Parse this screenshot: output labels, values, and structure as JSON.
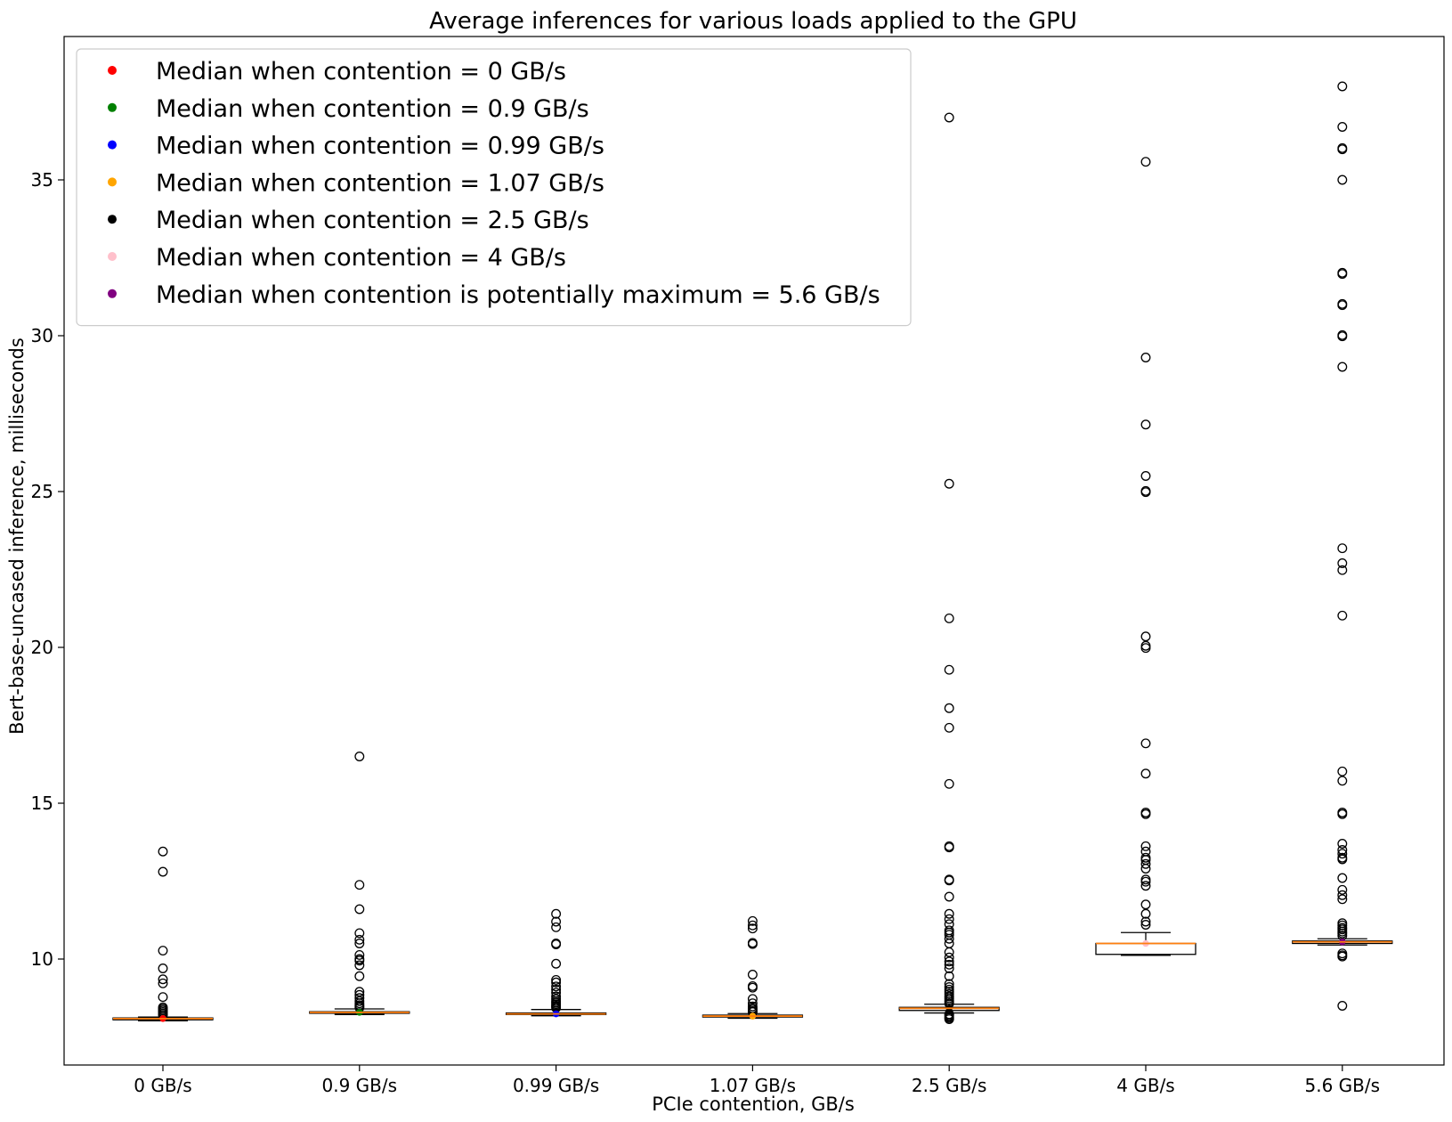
{
  "chart_data": {
    "type": "box",
    "title": "Average inferences for various loads applied to the GPU",
    "xlabel": "PCIe contention, GB/s",
    "ylabel": "Bert-base-uncased inference, milliseconds",
    "ylim": [
      6.6,
      39.6
    ],
    "yticks": [
      10,
      15,
      20,
      25,
      30,
      35
    ],
    "grid": false,
    "legend_position": "upper-left",
    "categories": [
      "0 GB/s",
      "0.9 GB/s",
      "0.99 GB/s",
      "1.07 GB/s",
      "2.5 GB/s",
      "4 GB/s",
      "5.6 GB/s"
    ],
    "boxes": [
      {
        "q1": 8.05,
        "median": 8.09,
        "q3": 8.11,
        "whisker_low": 8.02,
        "whisker_high": 8.14,
        "outliers": [
          13.45,
          12.8,
          10.27,
          9.7,
          9.35,
          9.22,
          8.78,
          8.45,
          8.4,
          8.35,
          8.3,
          8.25,
          8.2
        ]
      },
      {
        "q1": 8.26,
        "median": 8.29,
        "q3": 8.31,
        "whisker_low": 8.22,
        "whisker_high": 8.4,
        "outliers": [
          16.5,
          12.38,
          11.6,
          10.83,
          10.62,
          10.5,
          10.13,
          10.0,
          9.95,
          9.8,
          9.45,
          8.95,
          8.85,
          8.75,
          8.65,
          8.58,
          8.52,
          8.48,
          8.44
        ]
      },
      {
        "q1": 8.22,
        "median": 8.24,
        "q3": 8.27,
        "whisker_low": 8.18,
        "whisker_high": 8.38,
        "outliers": [
          11.45,
          11.2,
          11.02,
          10.5,
          10.47,
          9.85,
          9.33,
          9.25,
          9.12,
          9.02,
          8.92,
          8.8,
          8.72,
          8.65,
          8.6,
          8.55,
          8.5,
          8.47,
          8.43
        ]
      },
      {
        "q1": 8.14,
        "median": 8.17,
        "q3": 8.2,
        "whisker_low": 8.1,
        "whisker_high": 8.25,
        "outliers": [
          11.22,
          11.08,
          10.98,
          10.52,
          10.48,
          9.5,
          9.13,
          9.08,
          8.72,
          8.58,
          8.48,
          8.42,
          8.38,
          8.33,
          8.3
        ]
      },
      {
        "q1": 8.35,
        "median": 8.42,
        "q3": 8.45,
        "whisker_low": 8.27,
        "whisker_high": 8.55,
        "outliers": [
          37.0,
          25.25,
          20.93,
          19.28,
          18.05,
          17.42,
          15.62,
          13.62,
          13.58,
          12.55,
          12.52,
          12.0,
          11.45,
          11.28,
          11.12,
          10.92,
          10.85,
          10.78,
          10.65,
          10.5,
          10.22,
          10.05,
          9.92,
          9.82,
          9.7,
          9.45,
          9.2,
          9.1,
          9.02,
          8.95,
          8.88,
          8.8,
          8.74,
          8.68,
          8.62,
          8.57,
          8.23,
          8.19,
          8.15,
          8.11,
          8.07
        ]
      },
      {
        "q1": 10.15,
        "median": 10.5,
        "q3": 10.5,
        "whisker_low": 10.12,
        "whisker_high": 10.85,
        "outliers": [
          35.58,
          29.3,
          27.15,
          25.5,
          25.02,
          24.98,
          20.35,
          20.05,
          19.98,
          16.92,
          15.95,
          14.7,
          14.65,
          13.62,
          13.45,
          13.25,
          13.18,
          13.05,
          12.9,
          12.55,
          12.48,
          12.35,
          11.75,
          11.45,
          11.2,
          11.1
        ]
      },
      {
        "q1": 10.5,
        "median": 10.55,
        "q3": 10.58,
        "whisker_low": 10.45,
        "whisker_high": 10.65,
        "outliers": [
          38.0,
          36.7,
          36.02,
          35.98,
          35.0,
          32.02,
          31.98,
          31.02,
          30.98,
          30.02,
          29.98,
          29.0,
          23.18,
          22.7,
          22.48,
          21.02,
          16.02,
          15.72,
          14.7,
          14.65,
          13.7,
          13.5,
          13.38,
          13.25,
          13.2,
          12.6,
          12.22,
          12.05,
          11.92,
          11.15,
          11.08,
          11.0,
          10.95,
          10.88,
          10.82,
          10.75,
          10.18,
          10.12,
          10.08,
          8.5
        ]
      }
    ],
    "median_markers": [
      {
        "category": "0 GB/s",
        "value": 8.09,
        "color": "#ff0000"
      },
      {
        "category": "0.9 GB/s",
        "value": 8.29,
        "color": "#008000"
      },
      {
        "category": "0.99 GB/s",
        "value": 8.24,
        "color": "#0000ff"
      },
      {
        "category": "1.07 GB/s",
        "value": 8.17,
        "color": "#ffa500"
      },
      {
        "category": "2.5 GB/s",
        "value": 8.42,
        "color": "#000000"
      },
      {
        "category": "4 GB/s",
        "value": 10.5,
        "color": "#ffc0cb"
      },
      {
        "category": "5.6 GB/s",
        "value": 10.55,
        "color": "#800080"
      }
    ],
    "legend": [
      {
        "label": "Median when contention = 0 GB/s",
        "color": "#ff0000"
      },
      {
        "label": "Median when contention = 0.9 GB/s",
        "color": "#008000"
      },
      {
        "label": "Median when contention = 0.99 GB/s",
        "color": "#0000ff"
      },
      {
        "label": "Median when contention = 1.07 GB/s",
        "color": "#ffa500"
      },
      {
        "label": "Median when contention = 2.5 GB/s",
        "color": "#000000"
      },
      {
        "label": "Median when contention = 4 GB/s",
        "color": "#ffc0cb"
      },
      {
        "label": "Median when contention is potentially maximum = 5.6 GB/s",
        "color": "#800080"
      }
    ],
    "median_line_color": "#ff7f0e"
  }
}
